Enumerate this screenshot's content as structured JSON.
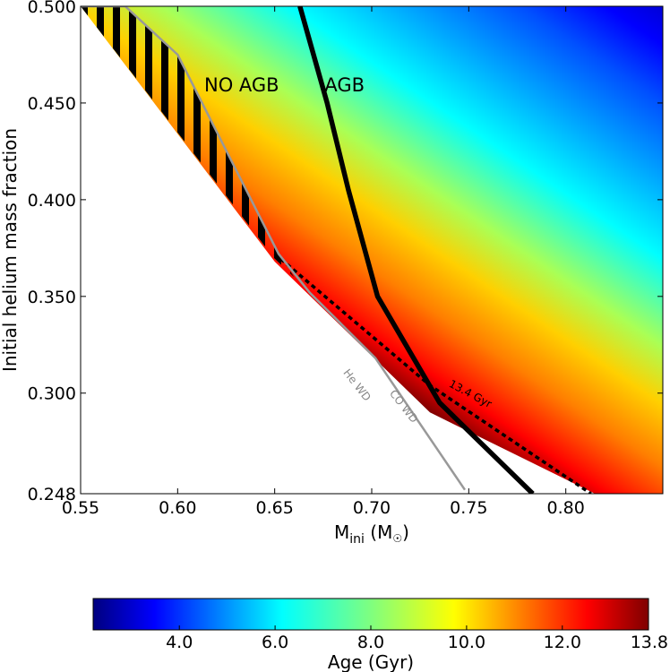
{
  "chart_data": {
    "type": "heatmap",
    "title": "",
    "xlabel": "M",
    "xlabel_sub": "ini",
    "xlabel_unit_open": " (M",
    "xlabel_unit_close": ")",
    "ylabel": "Initial helium mass fraction",
    "xlim": [
      0.55,
      0.85
    ],
    "ylim": [
      0.248,
      0.5
    ],
    "x_ticks": [
      {
        "value": 0.55,
        "label": "0.55"
      },
      {
        "value": 0.6,
        "label": "0.60"
      },
      {
        "value": 0.65,
        "label": "0.65"
      },
      {
        "value": 0.7,
        "label": "0.70"
      },
      {
        "value": 0.75,
        "label": "0.75"
      },
      {
        "value": 0.8,
        "label": "0.80"
      }
    ],
    "y_ticks": [
      {
        "value": 0.248,
        "label": "0.248"
      },
      {
        "value": 0.3,
        "label": "0.300"
      },
      {
        "value": 0.35,
        "label": "0.350"
      },
      {
        "value": 0.4,
        "label": "0.400"
      },
      {
        "value": 0.45,
        "label": "0.450"
      },
      {
        "value": 0.5,
        "label": "0.500"
      }
    ],
    "colorbar": {
      "label": "Age (Gyr)",
      "range": [
        2.2,
        13.8
      ],
      "ticks": [
        {
          "value": 4.0,
          "label": "4.0"
        },
        {
          "value": 6.0,
          "label": "6.0"
        },
        {
          "value": 8.0,
          "label": "8.0"
        },
        {
          "value": 10.0,
          "label": "10.0"
        },
        {
          "value": 12.0,
          "label": "12.0"
        },
        {
          "value": 13.8,
          "label": "13.8"
        }
      ]
    },
    "age_map": {
      "age_at_lower_edge": 13.8,
      "lower_edge_points": [
        [
          0.55,
          0.5
        ],
        [
          0.65,
          0.368
        ],
        [
          0.73,
          0.29
        ],
        [
          0.815,
          0.248
        ]
      ],
      "gradient_direction": [
        1.0,
        0.45
      ],
      "gyr_per_solar_mass_along_gradient": 68.5
    },
    "lines": [
      {
        "name": "AGB boundary",
        "color": "#000000",
        "points": [
          [
            0.663,
            0.5
          ],
          [
            0.677,
            0.45
          ],
          [
            0.688,
            0.405
          ],
          [
            0.703,
            0.35
          ],
          [
            0.735,
            0.295
          ],
          [
            0.783,
            0.248
          ]
        ]
      },
      {
        "name": "13.4 Gyr isochrone",
        "color": "#000000",
        "dashed": true,
        "points": [
          [
            0.65,
            0.372
          ],
          [
            0.73,
            0.304
          ],
          [
            0.813,
            0.248
          ]
        ]
      },
      {
        "name": "He WD / CO WD limit",
        "color": "#999999",
        "points": [
          [
            0.55,
            0.5
          ],
          [
            0.573,
            0.5
          ],
          [
            0.6,
            0.475
          ],
          [
            0.652,
            0.372
          ],
          [
            0.668,
            0.352
          ],
          [
            0.702,
            0.318
          ],
          [
            0.748,
            0.25
          ]
        ]
      }
    ],
    "hatched_region": [
      [
        0.55,
        0.5
      ],
      [
        0.573,
        0.5
      ],
      [
        0.6,
        0.475
      ],
      [
        0.652,
        0.372
      ],
      [
        0.66,
        0.36
      ],
      [
        0.6495,
        0.37
      ]
    ],
    "annotations": [
      {
        "text": "NO AGB",
        "x": 0.633,
        "y": 0.456
      },
      {
        "text": "AGB",
        "x": 0.686,
        "y": 0.456
      },
      {
        "text": "He WD",
        "x": 0.691,
        "y": 0.303,
        "rotate": 52
      },
      {
        "text": "CO WD",
        "x": 0.715,
        "y": 0.292,
        "rotate": 52
      },
      {
        "text": "13.4 Gyr",
        "x": 0.75,
        "y": 0.298,
        "rotate": 28
      }
    ]
  }
}
